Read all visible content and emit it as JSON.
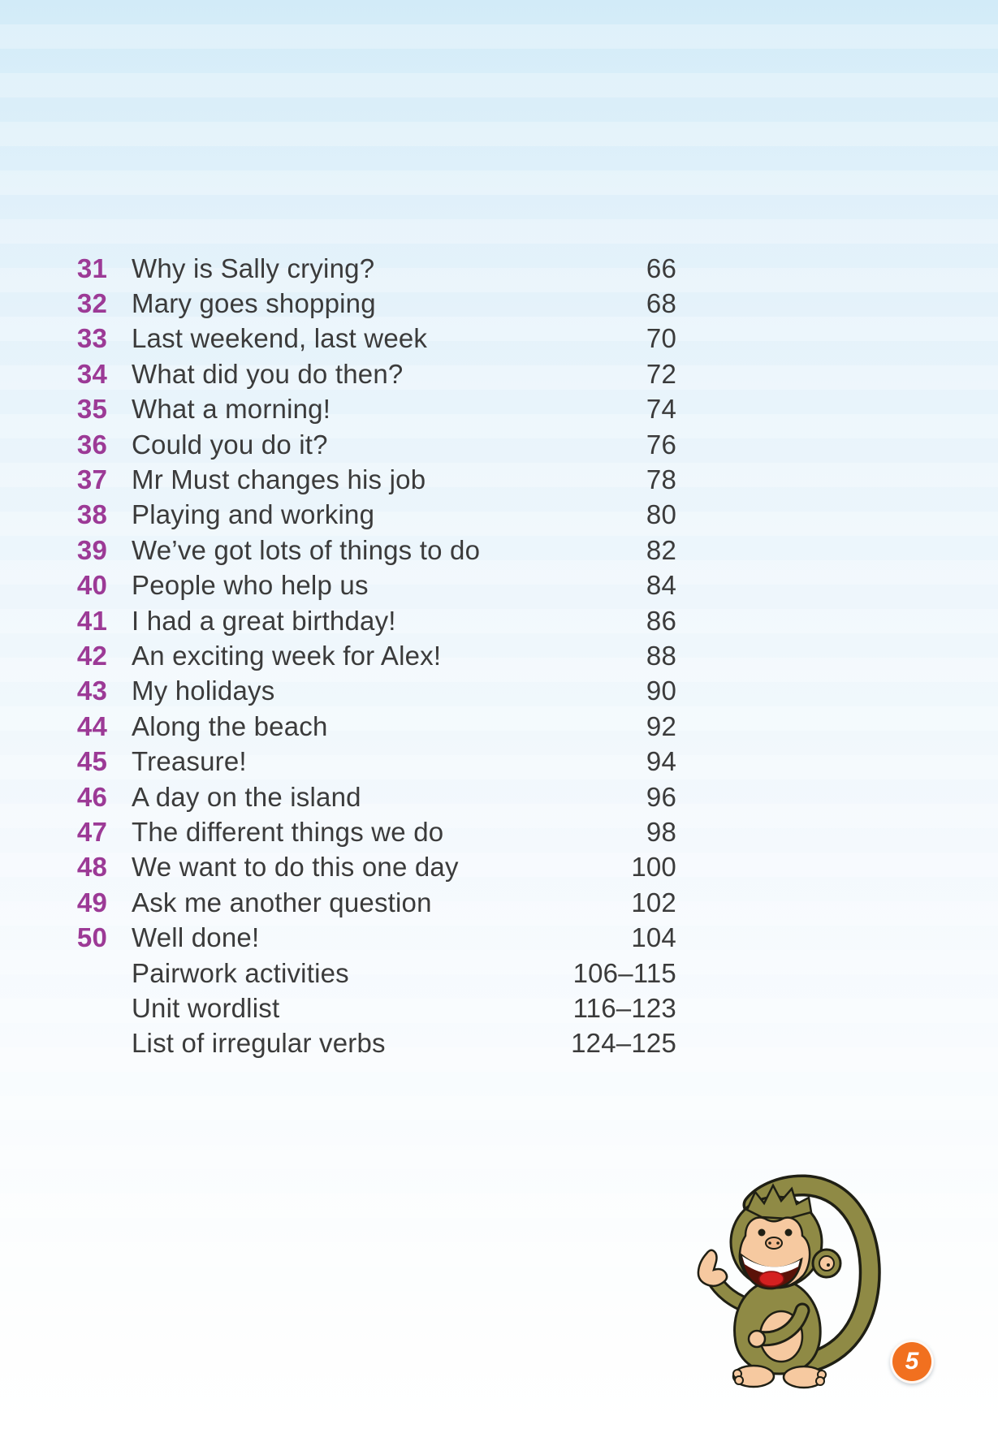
{
  "page": {
    "number": "5"
  },
  "colors": {
    "unit_number": "#9c3a96",
    "title_text": "#3b3b3b",
    "badge_orange": "#f1701f",
    "background_top": "#d2ebf8"
  },
  "toc": {
    "rows": [
      {
        "num": "31",
        "title": "Why is Sally crying?",
        "page": "66"
      },
      {
        "num": "32",
        "title": "Mary goes shopping",
        "page": "68"
      },
      {
        "num": "33",
        "title": "Last weekend, last week",
        "page": "70"
      },
      {
        "num": "34",
        "title": "What did you do then?",
        "page": "72"
      },
      {
        "num": "35",
        "title": "What a morning!",
        "page": "74"
      },
      {
        "num": "36",
        "title": "Could you do it?",
        "page": "76"
      },
      {
        "num": "37",
        "title": "Mr Must changes his job",
        "page": "78"
      },
      {
        "num": "38",
        "title": "Playing and working",
        "page": "80"
      },
      {
        "num": "39",
        "title": "We’ve got lots of things to do",
        "page": "82"
      },
      {
        "num": "40",
        "title": "People who help us",
        "page": "84"
      },
      {
        "num": "41",
        "title": "I had a great birthday!",
        "page": "86"
      },
      {
        "num": "42",
        "title": "An exciting week for Alex!",
        "page": "88"
      },
      {
        "num": "43",
        "title": "My holidays",
        "page": "90"
      },
      {
        "num": "44",
        "title": "Along the beach",
        "page": "92"
      },
      {
        "num": "45",
        "title": "Treasure!",
        "page": "94"
      },
      {
        "num": "46",
        "title": "A day on the island",
        "page": "96"
      },
      {
        "num": "47",
        "title": "The different things we do",
        "page": "98"
      },
      {
        "num": "48",
        "title": "We want to do this one day",
        "page": "100"
      },
      {
        "num": "49",
        "title": "Ask me another question",
        "page": "102"
      },
      {
        "num": "50",
        "title": "Well done!",
        "page": "104"
      },
      {
        "num": "",
        "title": "Pairwork activities",
        "page": "106–115"
      },
      {
        "num": "",
        "title": "Unit wordlist",
        "page": "116–123"
      },
      {
        "num": "",
        "title": "List of irregular verbs",
        "page": "124–125"
      }
    ]
  }
}
